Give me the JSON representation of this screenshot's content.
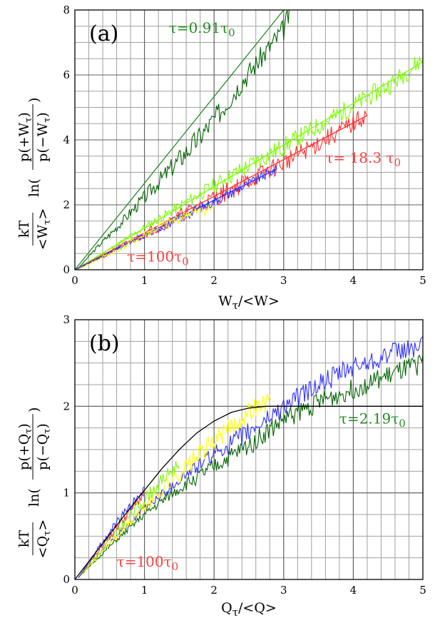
{
  "chart_data": [
    {
      "type": "line",
      "panel_label": "(a)",
      "xlabel": "Wτ/<W>",
      "ylabel_prefix": "kT",
      "ylabel_den": "<Wτ>",
      "ylabel_ln": "ln(",
      "ylabel_num": "p(+Wτ)",
      "ylabel_den2": "p(−Wτ)",
      "xlim": [
        0,
        5
      ],
      "ylim": [
        0,
        8
      ],
      "xticks": [
        0,
        1,
        2,
        3,
        4,
        5
      ],
      "yticks": [
        0,
        2,
        4,
        6,
        8
      ],
      "grid": true,
      "series": [
        {
          "color": "#006400",
          "kind": "noisy",
          "x": [
            0.05,
            0.3,
            0.6,
            0.9,
            1.2,
            1.5,
            1.8,
            2.1,
            2.4,
            2.7,
            3.0,
            3.1
          ],
          "y": [
            0.05,
            0.65,
            1.3,
            2.0,
            2.7,
            3.4,
            4.1,
            4.9,
            5.8,
            6.6,
            7.4,
            8.0
          ],
          "noise": 0.35,
          "seed": 3
        },
        {
          "color": "#228b22",
          "kind": "fit",
          "x": [
            0,
            3.0
          ],
          "y": [
            0,
            8.0
          ]
        },
        {
          "color": "#7cfc00",
          "kind": "noisy",
          "x": [
            0.05,
            1.0,
            2.0,
            3.0,
            3.8,
            4.6,
            5.0
          ],
          "y": [
            0.03,
            1.3,
            2.6,
            3.8,
            4.8,
            5.8,
            6.5
          ],
          "noise": 0.3,
          "seed": 11
        },
        {
          "color": "#7cfc00",
          "kind": "fit",
          "x": [
            0,
            5.0
          ],
          "y": [
            0,
            6.4
          ]
        },
        {
          "color": "#ff3030",
          "kind": "noisy",
          "x": [
            0.05,
            1.0,
            2.0,
            3.0,
            3.5,
            4.0,
            4.2
          ],
          "y": [
            0.02,
            1.1,
            2.2,
            3.3,
            3.9,
            4.5,
            4.8
          ],
          "noise": 0.3,
          "seed": 21
        },
        {
          "color": "#ff3030",
          "kind": "fit",
          "x": [
            0,
            4.2
          ],
          "y": [
            0,
            4.75
          ]
        },
        {
          "color": "#3030ff",
          "kind": "noisy",
          "x": [
            0.05,
            1.0,
            2.0,
            2.9
          ],
          "y": [
            0.02,
            1.05,
            2.1,
            3.1
          ],
          "noise": 0.15,
          "seed": 31
        },
        {
          "color": "#3030ff",
          "kind": "fit",
          "x": [
            0,
            2.9
          ],
          "y": [
            0,
            3.1
          ]
        },
        {
          "color": "#ffff00",
          "kind": "noisy",
          "x": [
            0.05,
            0.6,
            1.2,
            1.6,
            2.0
          ],
          "y": [
            0.02,
            0.6,
            1.3,
            1.7,
            1.9
          ],
          "noise": 0.15,
          "seed": 41
        }
      ],
      "annotations": [
        {
          "text_pre": "τ=0.91τ",
          "sub": "0",
          "text_post": "",
          "color": "#228b22",
          "x": 1.35,
          "y": 7.3
        },
        {
          "text_pre": "τ= 18.3 τ",
          "sub": "0",
          "text_post": "",
          "color": "#ff4040",
          "x": 3.6,
          "y": 3.3
        },
        {
          "text_pre": "τ=100τ",
          "sub": "0",
          "text_post": "",
          "color": "#ff4040",
          "x": 0.75,
          "y": 0.25
        }
      ]
    },
    {
      "type": "line",
      "panel_label": "(b)",
      "xlabel": "Qτ/<Q>",
      "ylabel_prefix": "kT",
      "ylabel_den": "<Qτ>",
      "ylabel_ln": "ln(",
      "ylabel_num": "p(+Qτ)",
      "ylabel_den2": "p(−Qτ)",
      "xlim": [
        0,
        5
      ],
      "ylim": [
        0,
        3
      ],
      "xticks": [
        0,
        1,
        2,
        3,
        4,
        5
      ],
      "yticks": [
        0,
        1,
        2,
        3
      ],
      "grid": true,
      "series": [
        {
          "color": "#006400",
          "kind": "noisy",
          "x": [
            0.05,
            0.5,
            1.0,
            1.5,
            2.0,
            2.5,
            3.0,
            3.5,
            4.0,
            4.5,
            5.0
          ],
          "y": [
            0.02,
            0.38,
            0.75,
            1.05,
            1.3,
            1.55,
            1.85,
            2.05,
            2.2,
            2.35,
            2.5
          ],
          "noise": 0.12,
          "seed": 51
        },
        {
          "color": "#3030ff",
          "kind": "noisy",
          "x": [
            0.05,
            0.5,
            1.0,
            1.5,
            2.0,
            2.5,
            3.0,
            3.5,
            4.0,
            4.5,
            5.0
          ],
          "y": [
            0.02,
            0.42,
            0.82,
            1.15,
            1.45,
            1.7,
            2.0,
            2.25,
            2.45,
            2.6,
            2.7
          ],
          "noise": 0.12,
          "seed": 61
        },
        {
          "color": "#ffff00",
          "kind": "noisy",
          "x": [
            0.05,
            0.6,
            1.2,
            1.8,
            2.3,
            2.6,
            2.8
          ],
          "y": [
            0.02,
            0.5,
            1.0,
            1.45,
            1.8,
            2.0,
            2.05
          ],
          "noise": 0.12,
          "seed": 71
        },
        {
          "color": "#7cfc00",
          "kind": "noisy",
          "x": [
            0.05,
            0.4,
            0.8,
            1.2,
            1.5
          ],
          "y": [
            0.02,
            0.35,
            0.75,
            1.1,
            1.35
          ],
          "noise": 0.08,
          "seed": 81
        },
        {
          "color": "#ff3030",
          "kind": "noisy",
          "x": [
            0.05,
            0.4,
            0.8,
            1.0
          ],
          "y": [
            0.02,
            0.4,
            0.8,
            1.0
          ],
          "noise": 0.05,
          "seed": 91
        },
        {
          "color": "#3030ff",
          "kind": "noisy",
          "x": [
            0.05,
            0.5,
            1.0
          ],
          "y": [
            0.02,
            0.55,
            1.05
          ],
          "noise": 0.05,
          "seed": 95
        },
        {
          "color": "#000000",
          "kind": "fit",
          "x": [
            0,
            0.25,
            0.5,
            0.75,
            1.0,
            1.25,
            1.5,
            1.75,
            2.0,
            2.25,
            2.5,
            2.75,
            3.0,
            3.25,
            3.5,
            4.0,
            5.0
          ],
          "y": [
            0,
            0.26,
            0.52,
            0.78,
            1.03,
            1.28,
            1.5,
            1.69,
            1.83,
            1.93,
            1.98,
            2.0,
            2.0,
            2.0,
            2.0,
            2.0,
            2.0
          ]
        }
      ],
      "annotations": [
        {
          "text_pre": "τ=2.19τ",
          "sub": "0",
          "text_post": "",
          "color": "#228b22",
          "x": 3.8,
          "y": 1.8
        },
        {
          "text_pre": "τ=100τ",
          "sub": "0",
          "text_post": "",
          "color": "#ff4040",
          "x": 0.6,
          "y": 0.15
        }
      ]
    }
  ]
}
